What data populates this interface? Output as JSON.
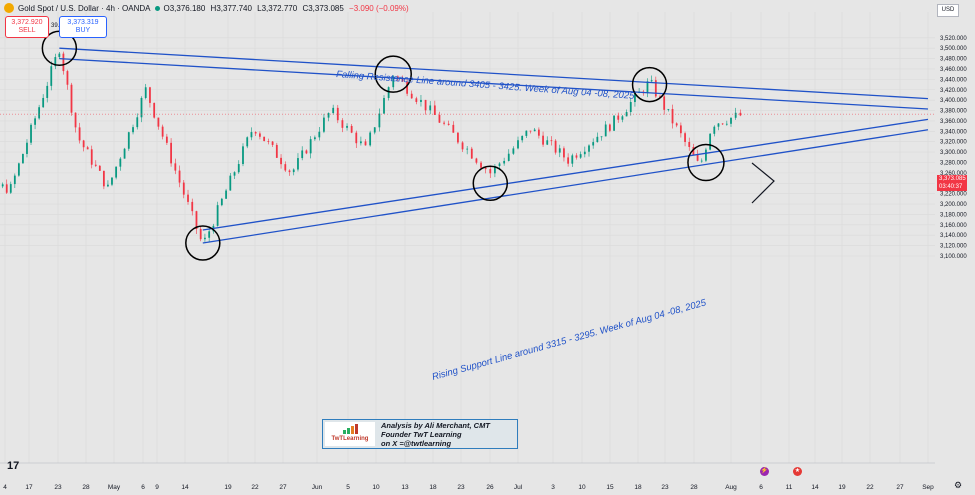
{
  "header": {
    "title": "Gold Spot / U.S. Dollar · 4h · OANDA",
    "open": "O3,376.180",
    "high": "H3,377.740",
    "low": "L3,372.770",
    "close": "C3,373.085",
    "change": "−3.090 (−0.09%)"
  },
  "trade": {
    "sell_price": "3,372.920",
    "sell_label": "SELL",
    "spread": "39.0",
    "buy_price": "3,373.319",
    "buy_label": "BUY"
  },
  "price_axis": {
    "currency": "USD",
    "current_price": "3,373.085",
    "countdown": "03:40:37",
    "ticks": [
      "3,520.000",
      "3,500.000",
      "3,480.000",
      "3,460.000",
      "3,440.000",
      "3,420.000",
      "3,400.000",
      "3,380.000",
      "3,360.000",
      "3,340.000",
      "3,320.000",
      "3,300.000",
      "3,280.000",
      "3,260.000",
      "3,240.000",
      "3,220.000",
      "3,200.000",
      "3,180.000",
      "3,160.000",
      "3,140.000",
      "3,120.000",
      "3,100.000"
    ]
  },
  "time_axis": {
    "labels": [
      "4",
      "17",
      "23",
      "28",
      "May",
      "6",
      "9",
      "14",
      "19",
      "22",
      "27",
      "Jun",
      "5",
      "10",
      "13",
      "18",
      "23",
      "26",
      "Jul",
      "3",
      "10",
      "15",
      "18",
      "23",
      "28",
      "Aug",
      "6",
      "11",
      "14",
      "19",
      "22",
      "27",
      "Sep"
    ]
  },
  "annotations": {
    "resistance_text": "Falling Resistance Line around 3405 - 3425. Week of Aug 04 -08, 2025",
    "support_text": "Rising Support Line around 3315 - 3295. Week of Aug 04 -08, 2025"
  },
  "branding": {
    "logo_name": "TwTLearning",
    "logo_tagline": "learn trade win",
    "line1": "Analysis by Ali Merchant, CMT",
    "line2": "Founder TwT Learning",
    "line3": "on X =@twtlearning"
  },
  "colors": {
    "background": "#e6e6e6",
    "up_candle": "#089981",
    "down_candle": "#f23645",
    "trendline": "#2052c8",
    "price_label": "#f23645"
  },
  "chart_data": {
    "type": "candlestick",
    "symbol": "Gold Spot / U.S. Dollar",
    "timeframe": "4h",
    "ylim": [
      3100,
      3530
    ],
    "anchors": [
      {
        "x": "Apr 14",
        "y": 3230
      },
      {
        "x": "Apr 22",
        "y": 3500
      },
      {
        "x": "Apr 25",
        "y": 3330
      },
      {
        "x": "Apr 30",
        "y": 3230
      },
      {
        "x": "May 6",
        "y": 3420
      },
      {
        "x": "May 15",
        "y": 3120
      },
      {
        "x": "May 23",
        "y": 3350
      },
      {
        "x": "May 29",
        "y": 3260
      },
      {
        "x": "Jun 4",
        "y": 3380
      },
      {
        "x": "Jun 9",
        "y": 3305
      },
      {
        "x": "Jun 13",
        "y": 3450
      },
      {
        "x": "Jun 19",
        "y": 3370
      },
      {
        "x": "Jun 27",
        "y": 3260
      },
      {
        "x": "Jul 3",
        "y": 3345
      },
      {
        "x": "Jul 9",
        "y": 3285
      },
      {
        "x": "Jul 16",
        "y": 3355
      },
      {
        "x": "Jul 22",
        "y": 3435
      },
      {
        "x": "Jul 30",
        "y": 3270
      },
      {
        "x": "Aug 1",
        "y": 3355
      },
      {
        "x": "Aug 6",
        "y": 3373
      }
    ],
    "resistance_lines": [
      {
        "from": {
          "x": "Apr 22",
          "y": 3500
        },
        "to": {
          "x": "Sep 1",
          "y": 3403
        }
      },
      {
        "from": {
          "x": "Apr 22",
          "y": 3480
        },
        "to": {
          "x": "Sep 1",
          "y": 3383
        }
      }
    ],
    "support_lines": [
      {
        "from": {
          "x": "May 15",
          "y": 3150
        },
        "to": {
          "x": "Sep 1",
          "y": 3363
        }
      },
      {
        "from": {
          "x": "May 15",
          "y": 3125
        },
        "to": {
          "x": "Sep 1",
          "y": 3343
        }
      }
    ],
    "highlighted_pivots": [
      {
        "x": "Apr 22",
        "y": 3500
      },
      {
        "x": "Jun 13",
        "y": 3450
      },
      {
        "x": "Jul 22",
        "y": 3430
      },
      {
        "x": "May 15",
        "y": 3125
      },
      {
        "x": "Jun 27",
        "y": 3240
      },
      {
        "x": "Jul 31",
        "y": 3280
      }
    ]
  }
}
